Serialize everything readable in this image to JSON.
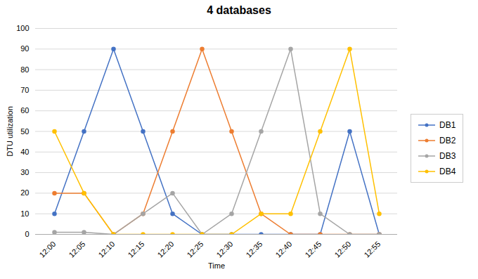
{
  "chart_data": {
    "type": "line",
    "title": "4 databases",
    "xlabel": "Time",
    "ylabel": "DTU utilization",
    "categories": [
      "12:00",
      "12:05",
      "12:10",
      "12:15",
      "12:20",
      "12:25",
      "12:30",
      "12:35",
      "12:40",
      "12:45",
      "12:50",
      "12:55"
    ],
    "series": [
      {
        "name": "DB1",
        "color": "#4472C4",
        "values": [
          10,
          50,
          90,
          50,
          10,
          0,
          0,
          0,
          0,
          0,
          50,
          0
        ]
      },
      {
        "name": "DB2",
        "color": "#ED7D31",
        "values": [
          20,
          20,
          0,
          10,
          50,
          90,
          50,
          10,
          0,
          0,
          0,
          0
        ]
      },
      {
        "name": "DB3",
        "color": "#A5A5A5",
        "values": [
          1,
          1,
          0,
          10,
          20,
          0,
          10,
          50,
          90,
          10,
          0,
          0
        ]
      },
      {
        "name": "DB4",
        "color": "#FFC000",
        "values": [
          50,
          20,
          0,
          0,
          0,
          0,
          0,
          10,
          10,
          50,
          90,
          10
        ]
      }
    ],
    "marker": "circle",
    "ylim": [
      0,
      100
    ],
    "yticks": [
      0,
      10,
      20,
      30,
      40,
      50,
      60,
      70,
      80,
      90,
      100
    ],
    "grid": true,
    "legend": "right"
  }
}
